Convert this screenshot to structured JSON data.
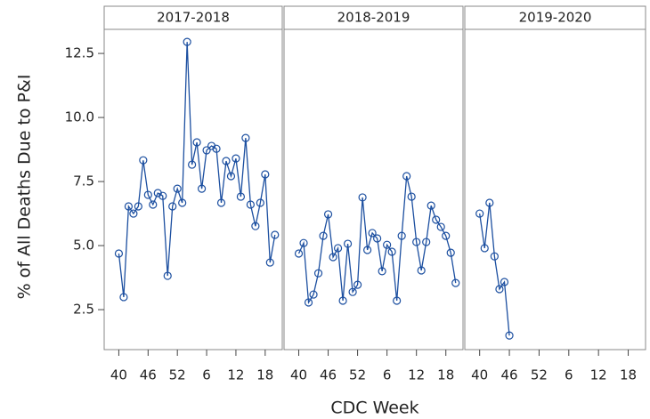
{
  "chart_data": [
    {
      "type": "line",
      "title": "2017-2018",
      "ylabel": "% of All Deaths Due to P&I",
      "color": "#1c4fa0",
      "x": [
        0,
        1,
        2,
        3,
        4,
        5,
        6,
        7,
        8,
        9,
        10,
        11,
        12,
        13,
        14,
        15,
        16,
        17,
        18,
        19,
        20,
        21,
        22,
        23,
        24,
        25,
        26,
        27,
        28,
        29,
        30,
        31,
        32
      ],
      "values": [
        4.69,
        2.99,
        6.53,
        6.25,
        6.53,
        8.33,
        6.98,
        6.6,
        7.05,
        6.94,
        3.82,
        6.53,
        7.22,
        6.67,
        12.95,
        8.16,
        9.03,
        7.22,
        8.72,
        8.89,
        8.78,
        6.67,
        8.3,
        7.71,
        8.4,
        6.91,
        9.2,
        6.6,
        5.76,
        6.67,
        7.78,
        4.34,
        5.42
      ],
      "xlim": [
        -3,
        33.5
      ],
      "ylim": [
        0.94,
        13.44
      ],
      "xticks": [
        {
          "value": 0,
          "label": "40"
        },
        {
          "value": 6,
          "label": "46"
        },
        {
          "value": 12,
          "label": "52"
        },
        {
          "value": 18,
          "label": "6"
        },
        {
          "value": 24,
          "label": "12"
        },
        {
          "value": 30,
          "label": "18"
        }
      ],
      "yticks": [
        12.5,
        {
          "value": 10,
          "label": "10.0"
        },
        7.5,
        {
          "value": 5,
          "label": "5.0"
        },
        2.5
      ]
    },
    {
      "type": "line",
      "title": "2018-2019",
      "xlabel": "CDC Week",
      "color": "#1c4fa0",
      "x": [
        0,
        1,
        2,
        3,
        4,
        5,
        6,
        7,
        8,
        9,
        10,
        11,
        12,
        13,
        14,
        15,
        16,
        17,
        18,
        19,
        20,
        21,
        22,
        23,
        24,
        25,
        26,
        27,
        28,
        29,
        30,
        31,
        32
      ],
      "values": [
        4.69,
        5.1,
        2.78,
        3.09,
        3.92,
        5.38,
        6.22,
        4.55,
        4.9,
        2.85,
        5.07,
        3.19,
        3.47,
        6.88,
        4.83,
        5.49,
        5.28,
        4.0,
        5.03,
        4.76,
        2.85,
        5.38,
        7.71,
        6.91,
        5.14,
        4.03,
        5.14,
        6.56,
        6.01,
        5.73,
        5.38,
        4.72,
        3.54
      ],
      "xlim": [
        -3,
        33.5
      ],
      "ylim": [
        0.94,
        13.44
      ],
      "xticks": [
        {
          "value": 0,
          "label": "40"
        },
        {
          "value": 6,
          "label": "46"
        },
        {
          "value": 12,
          "label": "52"
        },
        {
          "value": 18,
          "label": "6"
        },
        {
          "value": 24,
          "label": "12"
        },
        {
          "value": 30,
          "label": "18"
        }
      ]
    },
    {
      "type": "line",
      "title": "2019-2020",
      "color": "#1c4fa0",
      "x": [
        0,
        1,
        2,
        3,
        4,
        5,
        6
      ],
      "values": [
        6.25,
        4.9,
        6.67,
        4.58,
        3.3,
        3.58,
        1.49
      ],
      "xlim": [
        -3,
        33.5
      ],
      "ylim": [
        0.94,
        13.44
      ],
      "xticks": [
        {
          "value": 0,
          "label": "40"
        },
        {
          "value": 6,
          "label": "46"
        },
        {
          "value": 12,
          "label": "52"
        },
        {
          "value": 18,
          "label": "6"
        },
        {
          "value": 24,
          "label": "12"
        },
        {
          "value": 30,
          "label": "18"
        }
      ]
    }
  ]
}
